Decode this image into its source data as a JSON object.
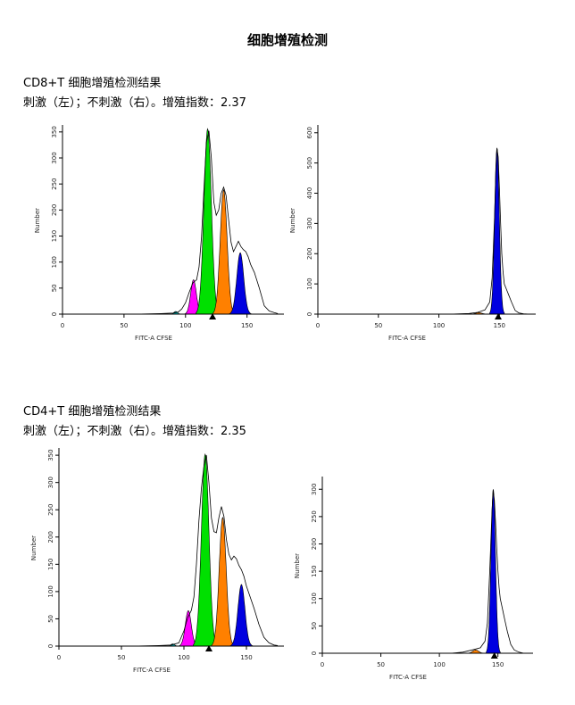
{
  "page_title": "细胞增殖检测",
  "sections": [
    {
      "title": "CD8+T 细胞增殖检测结果",
      "subtitle": "刺激（左）；不刺激（右）。增殖指数：2.37"
    },
    {
      "title": "CD4+T 细胞增殖检测结果",
      "subtitle": "刺激（左）；不刺激（右）。增殖指数：2.35"
    }
  ],
  "chart_data": [
    {
      "type": "area",
      "panel": "CD8+T stimulated",
      "xlabel": "FITC-A CFSE",
      "ylabel": "Number",
      "xlim": [
        0,
        180
      ],
      "ylim": [
        0,
        360
      ],
      "xticks": [
        0,
        50,
        100,
        150
      ],
      "yticks": [
        0,
        50,
        100,
        150,
        200,
        250,
        300,
        350
      ],
      "grid": false,
      "marker_x": 122,
      "envelope": [
        [
          0,
          0
        ],
        [
          60,
          0
        ],
        [
          80,
          1
        ],
        [
          90,
          2
        ],
        [
          94,
          4
        ],
        [
          97,
          10
        ],
        [
          100,
          22
        ],
        [
          103,
          42
        ],
        [
          106,
          60
        ],
        [
          109,
          66
        ],
        [
          111,
          90
        ],
        [
          113,
          148
        ],
        [
          115,
          240
        ],
        [
          117,
          330
        ],
        [
          119,
          352
        ],
        [
          121,
          300
        ],
        [
          123,
          215
        ],
        [
          125,
          190
        ],
        [
          127,
          200
        ],
        [
          129,
          232
        ],
        [
          131,
          244
        ],
        [
          133,
          228
        ],
        [
          135,
          182
        ],
        [
          137,
          138
        ],
        [
          139,
          120
        ],
        [
          141,
          130
        ],
        [
          143,
          140
        ],
        [
          145,
          130
        ],
        [
          147,
          124
        ],
        [
          149,
          120
        ],
        [
          151,
          110
        ],
        [
          153,
          95
        ],
        [
          156,
          80
        ],
        [
          160,
          50
        ],
        [
          164,
          16
        ],
        [
          168,
          6
        ],
        [
          172,
          3
        ],
        [
          175,
          1
        ]
      ],
      "series": [
        {
          "color": "#00c8c8",
          "peaks": [
            [
              92,
              5,
              1.5
            ]
          ]
        },
        {
          "color": "#ff00ff",
          "peaks": [
            [
              106.5,
              66,
              2.3
            ]
          ]
        },
        {
          "color": "#00e000",
          "peaks": [
            [
              118,
              356,
              3.0
            ]
          ]
        },
        {
          "color": "#ff8000",
          "peaks": [
            [
              131,
              239,
              2.8
            ]
          ]
        },
        {
          "color": "#0000e0",
          "peaks": [
            [
              144.5,
              118,
              2.8
            ]
          ]
        }
      ]
    },
    {
      "type": "area",
      "panel": "CD8+T unstimulated",
      "xlabel": "FITC-A CFSE",
      "ylabel": "Number",
      "xlim": [
        0,
        180
      ],
      "ylim": [
        0,
        620
      ],
      "xticks": [
        0,
        50,
        100,
        150
      ],
      "yticks": [
        0,
        100,
        200,
        300,
        400,
        500,
        600
      ],
      "grid": false,
      "marker_x": 149,
      "envelope": [
        [
          0,
          0
        ],
        [
          110,
          0
        ],
        [
          125,
          2
        ],
        [
          132,
          6
        ],
        [
          138,
          14
        ],
        [
          142,
          40
        ],
        [
          144,
          120
        ],
        [
          146,
          320
        ],
        [
          147,
          470
        ],
        [
          148,
          548
        ],
        [
          149,
          520
        ],
        [
          150,
          420
        ],
        [
          151,
          300
        ],
        [
          152,
          200
        ],
        [
          153,
          140
        ],
        [
          154,
          100
        ],
        [
          156,
          80
        ],
        [
          158,
          60
        ],
        [
          160,
          40
        ],
        [
          163,
          12
        ],
        [
          166,
          4
        ],
        [
          170,
          1
        ],
        [
          175,
          0
        ]
      ],
      "series": [
        {
          "color": "#ff8000",
          "peaks": [
            [
              133,
              5,
              2.5
            ]
          ]
        },
        {
          "color": "#0000e0",
          "peaks": [
            [
              148,
              550,
              1.9
            ]
          ]
        }
      ]
    },
    {
      "type": "area",
      "panel": "CD4+T stimulated",
      "xlabel": "FITC-A CFSE",
      "ylabel": "Number",
      "xlim": [
        0,
        180
      ],
      "ylim": [
        0,
        360
      ],
      "xticks": [
        0,
        50,
        100,
        150
      ],
      "yticks": [
        0,
        50,
        100,
        150,
        200,
        250,
        300,
        350
      ],
      "grid": false,
      "marker_x": 120,
      "envelope": [
        [
          0,
          0
        ],
        [
          60,
          0
        ],
        [
          80,
          1
        ],
        [
          90,
          2
        ],
        [
          96,
          6
        ],
        [
          100,
          28
        ],
        [
          103,
          52
        ],
        [
          106,
          66
        ],
        [
          108,
          90
        ],
        [
          110,
          150
        ],
        [
          112,
          230
        ],
        [
          114,
          290
        ],
        [
          116,
          330
        ],
        [
          118,
          350
        ],
        [
          120,
          300
        ],
        [
          122,
          235
        ],
        [
          124,
          210
        ],
        [
          126,
          208
        ],
        [
          128,
          236
        ],
        [
          130,
          256
        ],
        [
          132,
          238
        ],
        [
          134,
          195
        ],
        [
          136,
          168
        ],
        [
          138,
          158
        ],
        [
          140,
          165
        ],
        [
          142,
          160
        ],
        [
          144,
          148
        ],
        [
          146,
          140
        ],
        [
          148,
          128
        ],
        [
          150,
          110
        ],
        [
          153,
          90
        ],
        [
          156,
          70
        ],
        [
          160,
          40
        ],
        [
          164,
          16
        ],
        [
          168,
          6
        ],
        [
          172,
          2
        ],
        [
          175,
          1
        ]
      ],
      "series": [
        {
          "color": "#00c8c8",
          "peaks": [
            [
              91,
              4,
              1.5
            ]
          ]
        },
        {
          "color": "#ff00ff",
          "peaks": [
            [
              103.5,
              65,
              2.4
            ]
          ]
        },
        {
          "color": "#00e000",
          "peaks": [
            [
              117,
              352,
              3.0
            ]
          ]
        },
        {
          "color": "#ff8000",
          "peaks": [
            [
              131,
              236,
              2.8
            ]
          ]
        },
        {
          "color": "#0000e0",
          "peaks": [
            [
              146,
              113,
              2.8
            ]
          ]
        }
      ]
    },
    {
      "type": "area",
      "panel": "CD4+T unstimulated",
      "xlabel": "FITC-A CFSE",
      "ylabel": "Number",
      "xlim": [
        0,
        180
      ],
      "ylim": [
        0,
        320
      ],
      "xticks": [
        0,
        50,
        100,
        150
      ],
      "yticks": [
        0,
        50,
        100,
        150,
        200,
        250,
        300
      ],
      "grid": false,
      "marker_x": 147,
      "envelope": [
        [
          0,
          0
        ],
        [
          110,
          0
        ],
        [
          120,
          2
        ],
        [
          128,
          6
        ],
        [
          135,
          10
        ],
        [
          139,
          22
        ],
        [
          141,
          55
        ],
        [
          143,
          150
        ],
        [
          145,
          262
        ],
        [
          146,
          298
        ],
        [
          147,
          280
        ],
        [
          148,
          240
        ],
        [
          149,
          190
        ],
        [
          150,
          150
        ],
        [
          151,
          120
        ],
        [
          152,
          100
        ],
        [
          154,
          80
        ],
        [
          156,
          60
        ],
        [
          158,
          40
        ],
        [
          161,
          16
        ],
        [
          164,
          6
        ],
        [
          168,
          2
        ],
        [
          172,
          0
        ]
      ],
      "series": [
        {
          "color": "#ff8000",
          "peaks": [
            [
              131,
              6,
              2.5
            ]
          ]
        },
        {
          "color": "#0000e0",
          "peaks": [
            [
              146,
              300,
              1.9
            ]
          ]
        }
      ]
    }
  ]
}
